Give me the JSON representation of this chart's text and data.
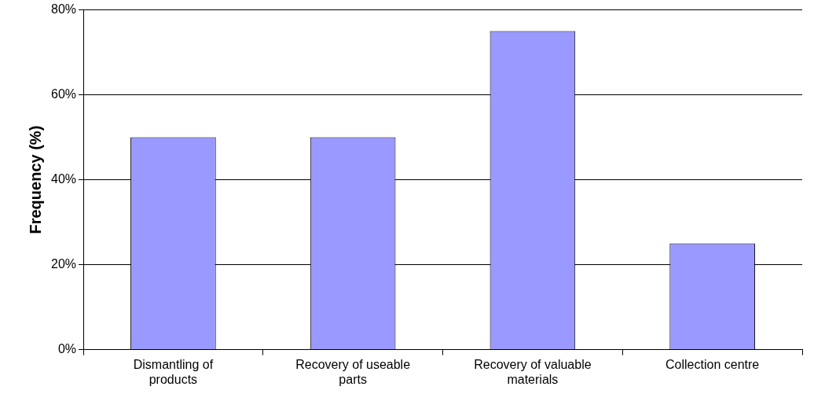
{
  "chart_data": {
    "type": "bar",
    "ylabel": "Frequency (%)",
    "categories": [
      "Dismantling of products",
      "Recovery of useable parts",
      "Recovery of valuable materials",
      "Collection centre"
    ],
    "values": [
      50,
      50,
      75,
      25
    ],
    "color": "#9999ff",
    "ylim": [
      0,
      80
    ],
    "yticks": [
      {
        "value": 0,
        "label": "0%"
      },
      {
        "value": 20,
        "label": "20%"
      },
      {
        "value": 40,
        "label": "40%"
      },
      {
        "value": 60,
        "label": "60%"
      },
      {
        "value": 80,
        "label": "80%"
      }
    ],
    "grid": "y",
    "legend": false
  }
}
